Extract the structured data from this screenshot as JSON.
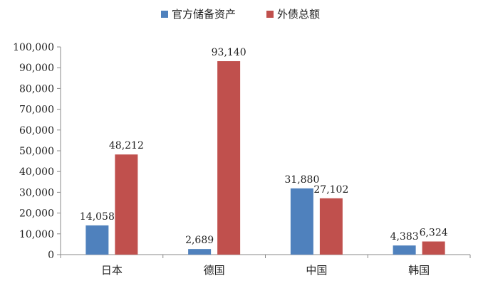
{
  "chart_data": {
    "type": "bar",
    "categories": [
      "日本",
      "德国",
      "中国",
      "韩国"
    ],
    "series": [
      {
        "name": "官方储备资产",
        "color": "#4F81BD",
        "values": [
          14058,
          2689,
          31880,
          4383
        ],
        "labels": [
          "14,058",
          "2,689",
          "31,880",
          "4,383"
        ]
      },
      {
        "name": "外债总额",
        "color": "#C0504D",
        "values": [
          48212,
          93140,
          27102,
          6324
        ],
        "labels": [
          "48,212",
          "93,140",
          "27,102",
          "6,324"
        ]
      }
    ],
    "ylim": [
      0,
      100000
    ],
    "yticks": [
      0,
      10000,
      20000,
      30000,
      40000,
      50000,
      60000,
      70000,
      80000,
      90000,
      100000
    ],
    "ytick_labels": [
      "0",
      "10,000",
      "20,000",
      "30,000",
      "40,000",
      "50,000",
      "60,000",
      "70,000",
      "80,000",
      "90,000",
      "100,000"
    ],
    "title": "",
    "xlabel": "",
    "ylabel": "",
    "grid": false,
    "legend_position": "top-center"
  }
}
